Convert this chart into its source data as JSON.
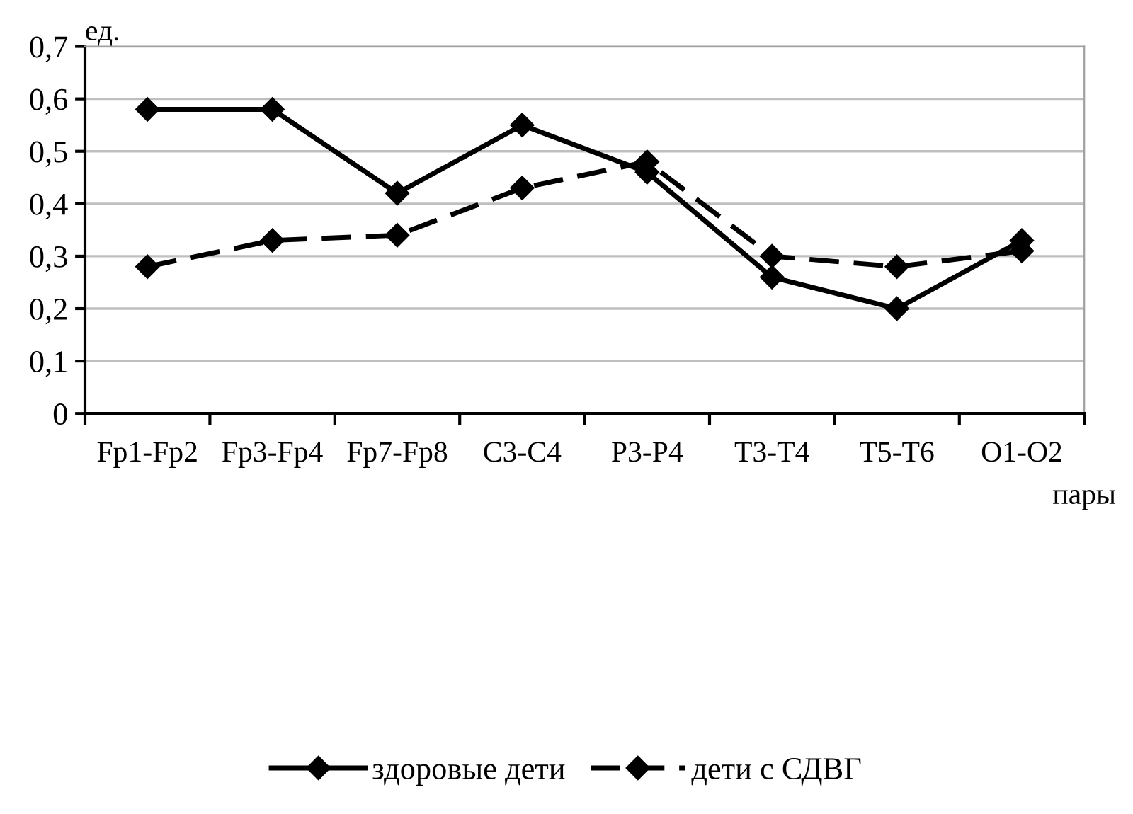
{
  "chart_data": {
    "type": "line",
    "xlabel": "пары",
    "ylabel": "ед.",
    "categories": [
      "Fp1-Fp2",
      "Fp3-Fp4",
      "Fp7-Fp8",
      "C3-C4",
      "P3-P4",
      "T3-T4",
      "T5-T6",
      "O1-O2"
    ],
    "series": [
      {
        "name": "здоровые дети",
        "color": "#000000",
        "line_style": "solid",
        "values": [
          0.58,
          0.58,
          0.42,
          0.55,
          0.46,
          0.26,
          0.2,
          0.33
        ]
      },
      {
        "name": "дети с СДВГ",
        "color": "#000000",
        "line_style": "dashed",
        "values": [
          0.28,
          0.33,
          0.34,
          0.43,
          0.48,
          0.3,
          0.28,
          0.31
        ]
      }
    ],
    "ylim": [
      0,
      0.7
    ],
    "yticks": [
      {
        "value": 0,
        "label": "0"
      },
      {
        "value": 0.1,
        "label": "0,1"
      },
      {
        "value": 0.2,
        "label": "0,2"
      },
      {
        "value": 0.3,
        "label": "0,3"
      },
      {
        "value": 0.4,
        "label": "0,4"
      },
      {
        "value": 0.5,
        "label": "0,5"
      },
      {
        "value": 0.6,
        "label": "0,6"
      },
      {
        "value": 0.7,
        "label": "0,7"
      }
    ],
    "grid": "y",
    "legend": "bottom",
    "marker": "diamond"
  }
}
